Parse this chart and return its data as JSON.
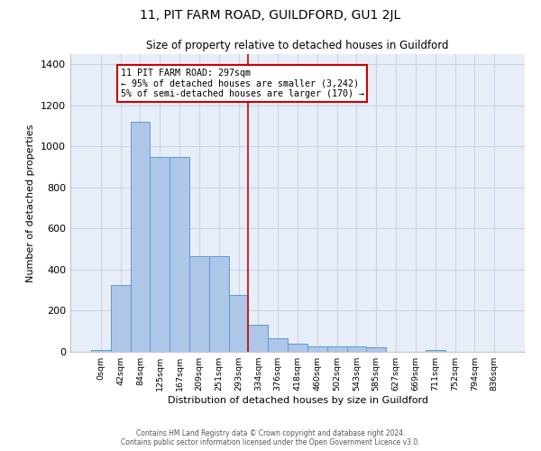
{
  "title": "11, PIT FARM ROAD, GUILDFORD, GU1 2JL",
  "subtitle": "Size of property relative to detached houses in Guildford",
  "xlabel": "Distribution of detached houses by size in Guildford",
  "ylabel": "Number of detached properties",
  "footer_line1": "Contains HM Land Registry data © Crown copyright and database right 2024.",
  "footer_line2": "Contains public sector information licensed under the Open Government Licence v3.0.",
  "bin_labels": [
    "0sqm",
    "42sqm",
    "84sqm",
    "125sqm",
    "167sqm",
    "209sqm",
    "251sqm",
    "293sqm",
    "334sqm",
    "376sqm",
    "418sqm",
    "460sqm",
    "502sqm",
    "543sqm",
    "585sqm",
    "627sqm",
    "669sqm",
    "711sqm",
    "752sqm",
    "794sqm",
    "836sqm"
  ],
  "bar_values": [
    10,
    325,
    1120,
    950,
    950,
    465,
    465,
    275,
    130,
    65,
    40,
    25,
    25,
    25,
    20,
    0,
    0,
    10,
    0,
    0,
    0
  ],
  "bar_color": "#aec6e8",
  "bar_edge_color": "#5b9bd5",
  "grid_color": "#c8d4e8",
  "bg_color": "#e8eef8",
  "annotation_text": "11 PIT FARM ROAD: 297sqm\n← 95% of detached houses are smaller (3,242)\n5% of semi-detached houses are larger (170) →",
  "annotation_box_color": "#ffffff",
  "annotation_box_edge": "#cc0000",
  "vline_x": 7.5,
  "vline_color": "#cc0000",
  "ylim": [
    0,
    1450
  ],
  "yticks": [
    0,
    200,
    400,
    600,
    800,
    1000,
    1200,
    1400
  ]
}
